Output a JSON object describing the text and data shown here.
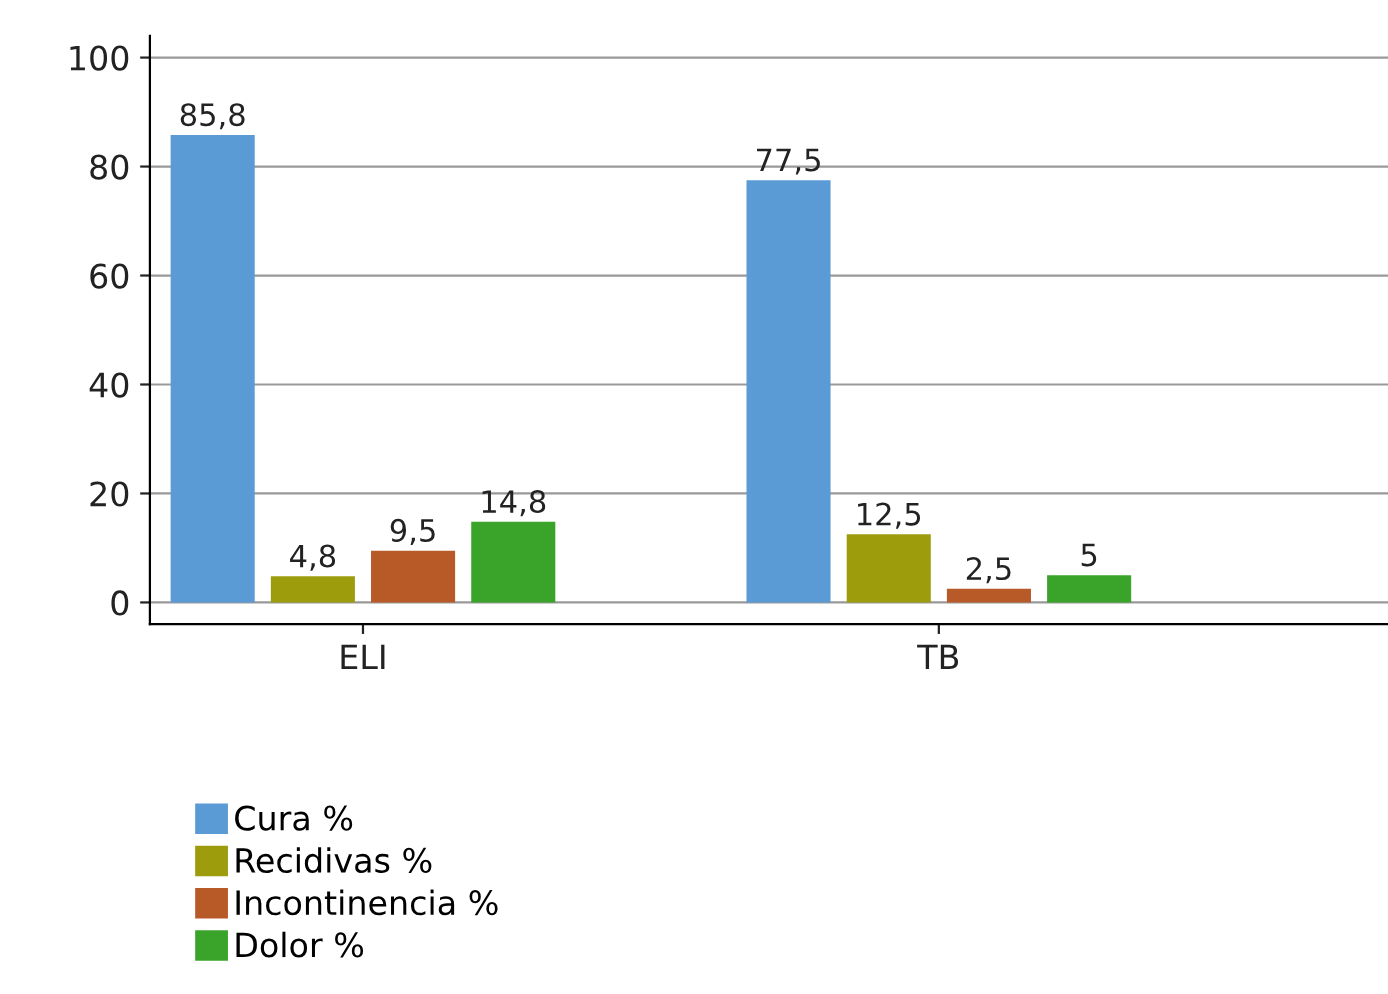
{
  "chart_data": {
    "type": "bar",
    "categories": [
      "ELI",
      "TB"
    ],
    "series": [
      {
        "name": "Cura %",
        "color": "#5b9bd5",
        "values": [
          85.8,
          77.5
        ],
        "value_labels": [
          "85,8",
          "77,5"
        ]
      },
      {
        "name": "Recidivas %",
        "color": "#9c9c0c",
        "values": [
          4.8,
          12.5
        ],
        "value_labels": [
          "4,8",
          "12,5"
        ]
      },
      {
        "name": "Incontinencia %",
        "color": "#b85a28",
        "values": [
          9.5,
          2.5
        ],
        "value_labels": [
          "9,5",
          "2,5"
        ]
      },
      {
        "name": "Dolor %",
        "color": "#3aa42a",
        "values": [
          14.8,
          5
        ],
        "value_labels": [
          "14,8",
          "5"
        ]
      }
    ],
    "ylim": [
      -4,
      104
    ],
    "yticks": [
      0,
      20,
      40,
      60,
      80,
      100
    ],
    "grid": "y",
    "legend": "bottom left"
  }
}
